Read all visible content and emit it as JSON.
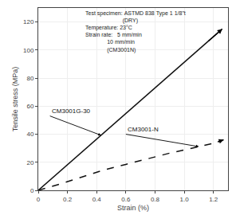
{
  "chart_data": {
    "type": "line",
    "xlabel": "Strain (%)",
    "ylabel": "Tensile stress (MPa)",
    "xlim": [
      0,
      1.3
    ],
    "ylim": [
      0,
      130
    ],
    "xticks": [
      0,
      0.2,
      0.4,
      0.6,
      0.8,
      {
        "value": 1.0,
        "label": "1.0"
      },
      1.2
    ],
    "yticks": [
      0,
      20,
      40,
      60,
      80,
      100,
      120
    ],
    "grid": true,
    "annotations": [
      "Test specimen: ASTMD 838 Type 1 1/8\"t",
      "                        (DRY)",
      "Temperature: 23°C",
      "Strain rate:   5 mm/min",
      "              10 mm/min",
      "              (CM3001N)"
    ],
    "series": [
      {
        "name": "CM3001G-30",
        "color": "#111111",
        "line_style": "solid",
        "x": [
          0.0,
          1.26
        ],
        "values": [
          0.0,
          115.0
        ]
      },
      {
        "name": "CM3001-N",
        "color": "#111111",
        "line_style": "dash",
        "x": [
          0.0,
          0.15,
          0.3,
          0.45,
          0.6,
          0.75,
          0.9,
          1.05,
          1.2,
          1.27
        ],
        "values": [
          0.0,
          4.5,
          9.5,
          14.5,
          18.5,
          22.5,
          26.5,
          30.0,
          33.5,
          36.0
        ]
      }
    ]
  }
}
